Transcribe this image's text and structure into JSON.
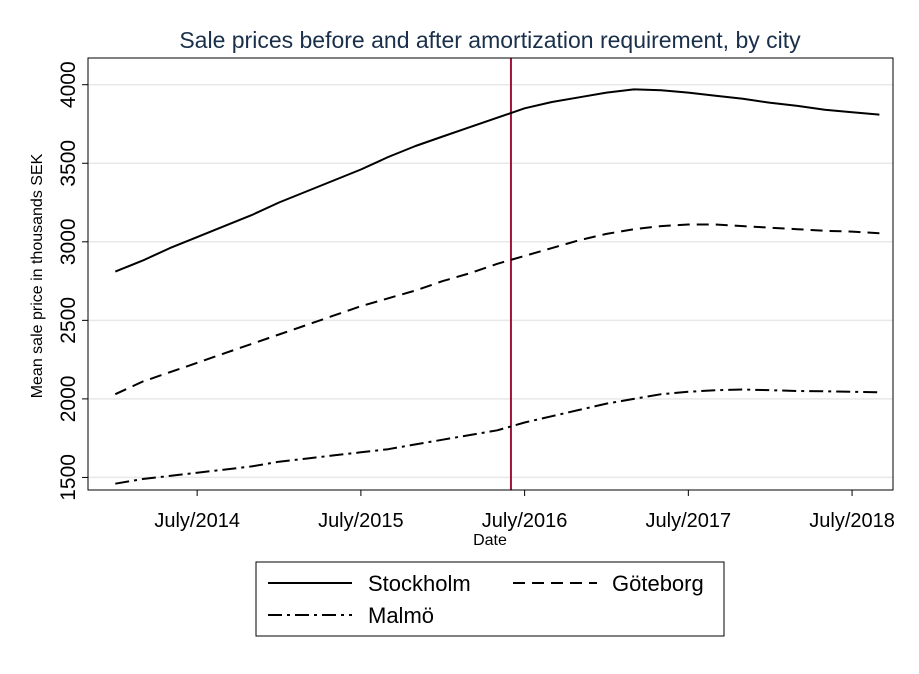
{
  "chart_data": {
    "type": "line",
    "title": "Sale prices before and after amortization requirement, by city",
    "xlabel": "Date",
    "ylabel": "Mean sale price in  thousands SEK",
    "x_ticks": [
      "July/2014",
      "July/2015",
      "July/2016",
      "July/2017",
      "July/2018"
    ],
    "x_tick_positions": [
      "2014-07",
      "2015-07",
      "2016-07",
      "2017-07",
      "2018-07"
    ],
    "xlim": [
      "2013-11",
      "2018-10"
    ],
    "y_ticks": [
      1500,
      2000,
      2500,
      3000,
      3500,
      4000
    ],
    "ylim": [
      1420,
      4170
    ],
    "grid": "horizontal",
    "vertical_marker": {
      "x": "2016-06",
      "color": "#a0143c"
    },
    "legend_position": "bottom",
    "series": [
      {
        "name": "Stockholm",
        "line_style": "solid",
        "color": "#000000",
        "points": [
          [
            "2014-01",
            2810
          ],
          [
            "2014-03",
            2880
          ],
          [
            "2014-05",
            2960
          ],
          [
            "2014-07",
            3030
          ],
          [
            "2014-09",
            3100
          ],
          [
            "2014-11",
            3170
          ],
          [
            "2015-01",
            3250
          ],
          [
            "2015-03",
            3320
          ],
          [
            "2015-05",
            3390
          ],
          [
            "2015-07",
            3460
          ],
          [
            "2015-09",
            3540
          ],
          [
            "2015-11",
            3610
          ],
          [
            "2016-01",
            3670
          ],
          [
            "2016-03",
            3730
          ],
          [
            "2016-05",
            3790
          ],
          [
            "2016-07",
            3850
          ],
          [
            "2016-09",
            3890
          ],
          [
            "2016-11",
            3920
          ],
          [
            "2017-01",
            3950
          ],
          [
            "2017-03",
            3970
          ],
          [
            "2017-05",
            3965
          ],
          [
            "2017-07",
            3950
          ],
          [
            "2017-09",
            3930
          ],
          [
            "2017-11",
            3910
          ],
          [
            "2018-01",
            3885
          ],
          [
            "2018-03",
            3865
          ],
          [
            "2018-05",
            3840
          ],
          [
            "2018-07",
            3825
          ],
          [
            "2018-09",
            3810
          ]
        ]
      },
      {
        "name": "Göteborg",
        "line_style": "dash",
        "color": "#000000",
        "points": [
          [
            "2014-01",
            2030
          ],
          [
            "2014-03",
            2110
          ],
          [
            "2014-05",
            2170
          ],
          [
            "2014-07",
            2230
          ],
          [
            "2014-09",
            2290
          ],
          [
            "2014-11",
            2350
          ],
          [
            "2015-01",
            2410
          ],
          [
            "2015-03",
            2470
          ],
          [
            "2015-05",
            2530
          ],
          [
            "2015-07",
            2590
          ],
          [
            "2015-09",
            2640
          ],
          [
            "2015-11",
            2690
          ],
          [
            "2016-01",
            2750
          ],
          [
            "2016-03",
            2800
          ],
          [
            "2016-05",
            2860
          ],
          [
            "2016-07",
            2910
          ],
          [
            "2016-09",
            2960
          ],
          [
            "2016-11",
            3010
          ],
          [
            "2017-01",
            3050
          ],
          [
            "2017-03",
            3080
          ],
          [
            "2017-05",
            3100
          ],
          [
            "2017-07",
            3110
          ],
          [
            "2017-09",
            3110
          ],
          [
            "2017-11",
            3100
          ],
          [
            "2018-01",
            3090
          ],
          [
            "2018-03",
            3080
          ],
          [
            "2018-05",
            3070
          ],
          [
            "2018-07",
            3065
          ],
          [
            "2018-09",
            3055
          ]
        ]
      },
      {
        "name": "Malmö",
        "line_style": "dashdot",
        "color": "#000000",
        "points": [
          [
            "2014-01",
            1460
          ],
          [
            "2014-03",
            1490
          ],
          [
            "2014-05",
            1510
          ],
          [
            "2014-07",
            1530
          ],
          [
            "2014-09",
            1550
          ],
          [
            "2014-11",
            1570
          ],
          [
            "2015-01",
            1600
          ],
          [
            "2015-03",
            1620
          ],
          [
            "2015-05",
            1640
          ],
          [
            "2015-07",
            1660
          ],
          [
            "2015-09",
            1680
          ],
          [
            "2015-11",
            1710
          ],
          [
            "2016-01",
            1740
          ],
          [
            "2016-03",
            1770
          ],
          [
            "2016-05",
            1800
          ],
          [
            "2016-07",
            1850
          ],
          [
            "2016-09",
            1890
          ],
          [
            "2016-11",
            1930
          ],
          [
            "2017-01",
            1970
          ],
          [
            "2017-03",
            2000
          ],
          [
            "2017-05",
            2030
          ],
          [
            "2017-07",
            2045
          ],
          [
            "2017-09",
            2055
          ],
          [
            "2017-11",
            2060
          ],
          [
            "2018-01",
            2055
          ],
          [
            "2018-03",
            2050
          ],
          [
            "2018-05",
            2048
          ],
          [
            "2018-07",
            2045
          ],
          [
            "2018-09",
            2042
          ]
        ]
      }
    ]
  }
}
